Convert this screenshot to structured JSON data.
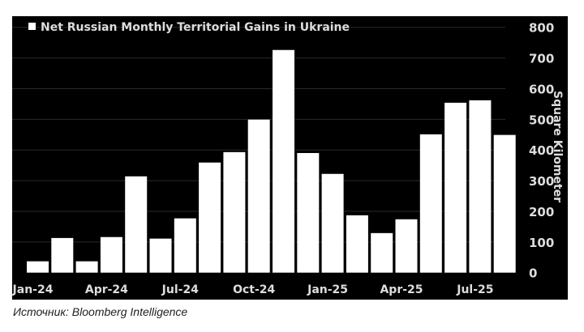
{
  "chart_data": {
    "type": "bar",
    "title": "Net Russian Monthly Territorial Gains in Ukraine",
    "ylabel": "Square Kilometer",
    "xlabel": "",
    "ylim": [
      0,
      800
    ],
    "yticks": [
      0,
      100,
      200,
      300,
      400,
      500,
      600,
      700,
      800
    ],
    "y_axis_side": "right",
    "grid": true,
    "legend": "top-left",
    "categories": [
      "Jan-24",
      "Feb-24",
      "Mar-24",
      "Apr-24",
      "May-24",
      "Jun-24",
      "Jul-24",
      "Aug-24",
      "Sep-24",
      "Oct-24",
      "Nov-24",
      "Dec-24",
      "Jan-25",
      "Feb-25",
      "Mar-25",
      "Apr-25",
      "May-25",
      "Jun-25",
      "Jul-25",
      "Aug-25"
    ],
    "xtick_labels": [
      "Jan-24",
      "Apr-24",
      "Jul-24",
      "Oct-24",
      "Jan-25",
      "Apr-25",
      "Jul-25"
    ],
    "values": [
      37,
      113,
      37,
      116,
      314,
      111,
      177,
      359,
      393,
      499,
      726,
      390,
      322,
      187,
      129,
      174,
      451,
      554,
      562,
      449
    ],
    "colors": {
      "background": "#000000",
      "bar": "#ffffff",
      "grid": "#2a2a2a",
      "text": "#dddddd"
    }
  },
  "source": "Источник: Bloomberg Intelligence"
}
